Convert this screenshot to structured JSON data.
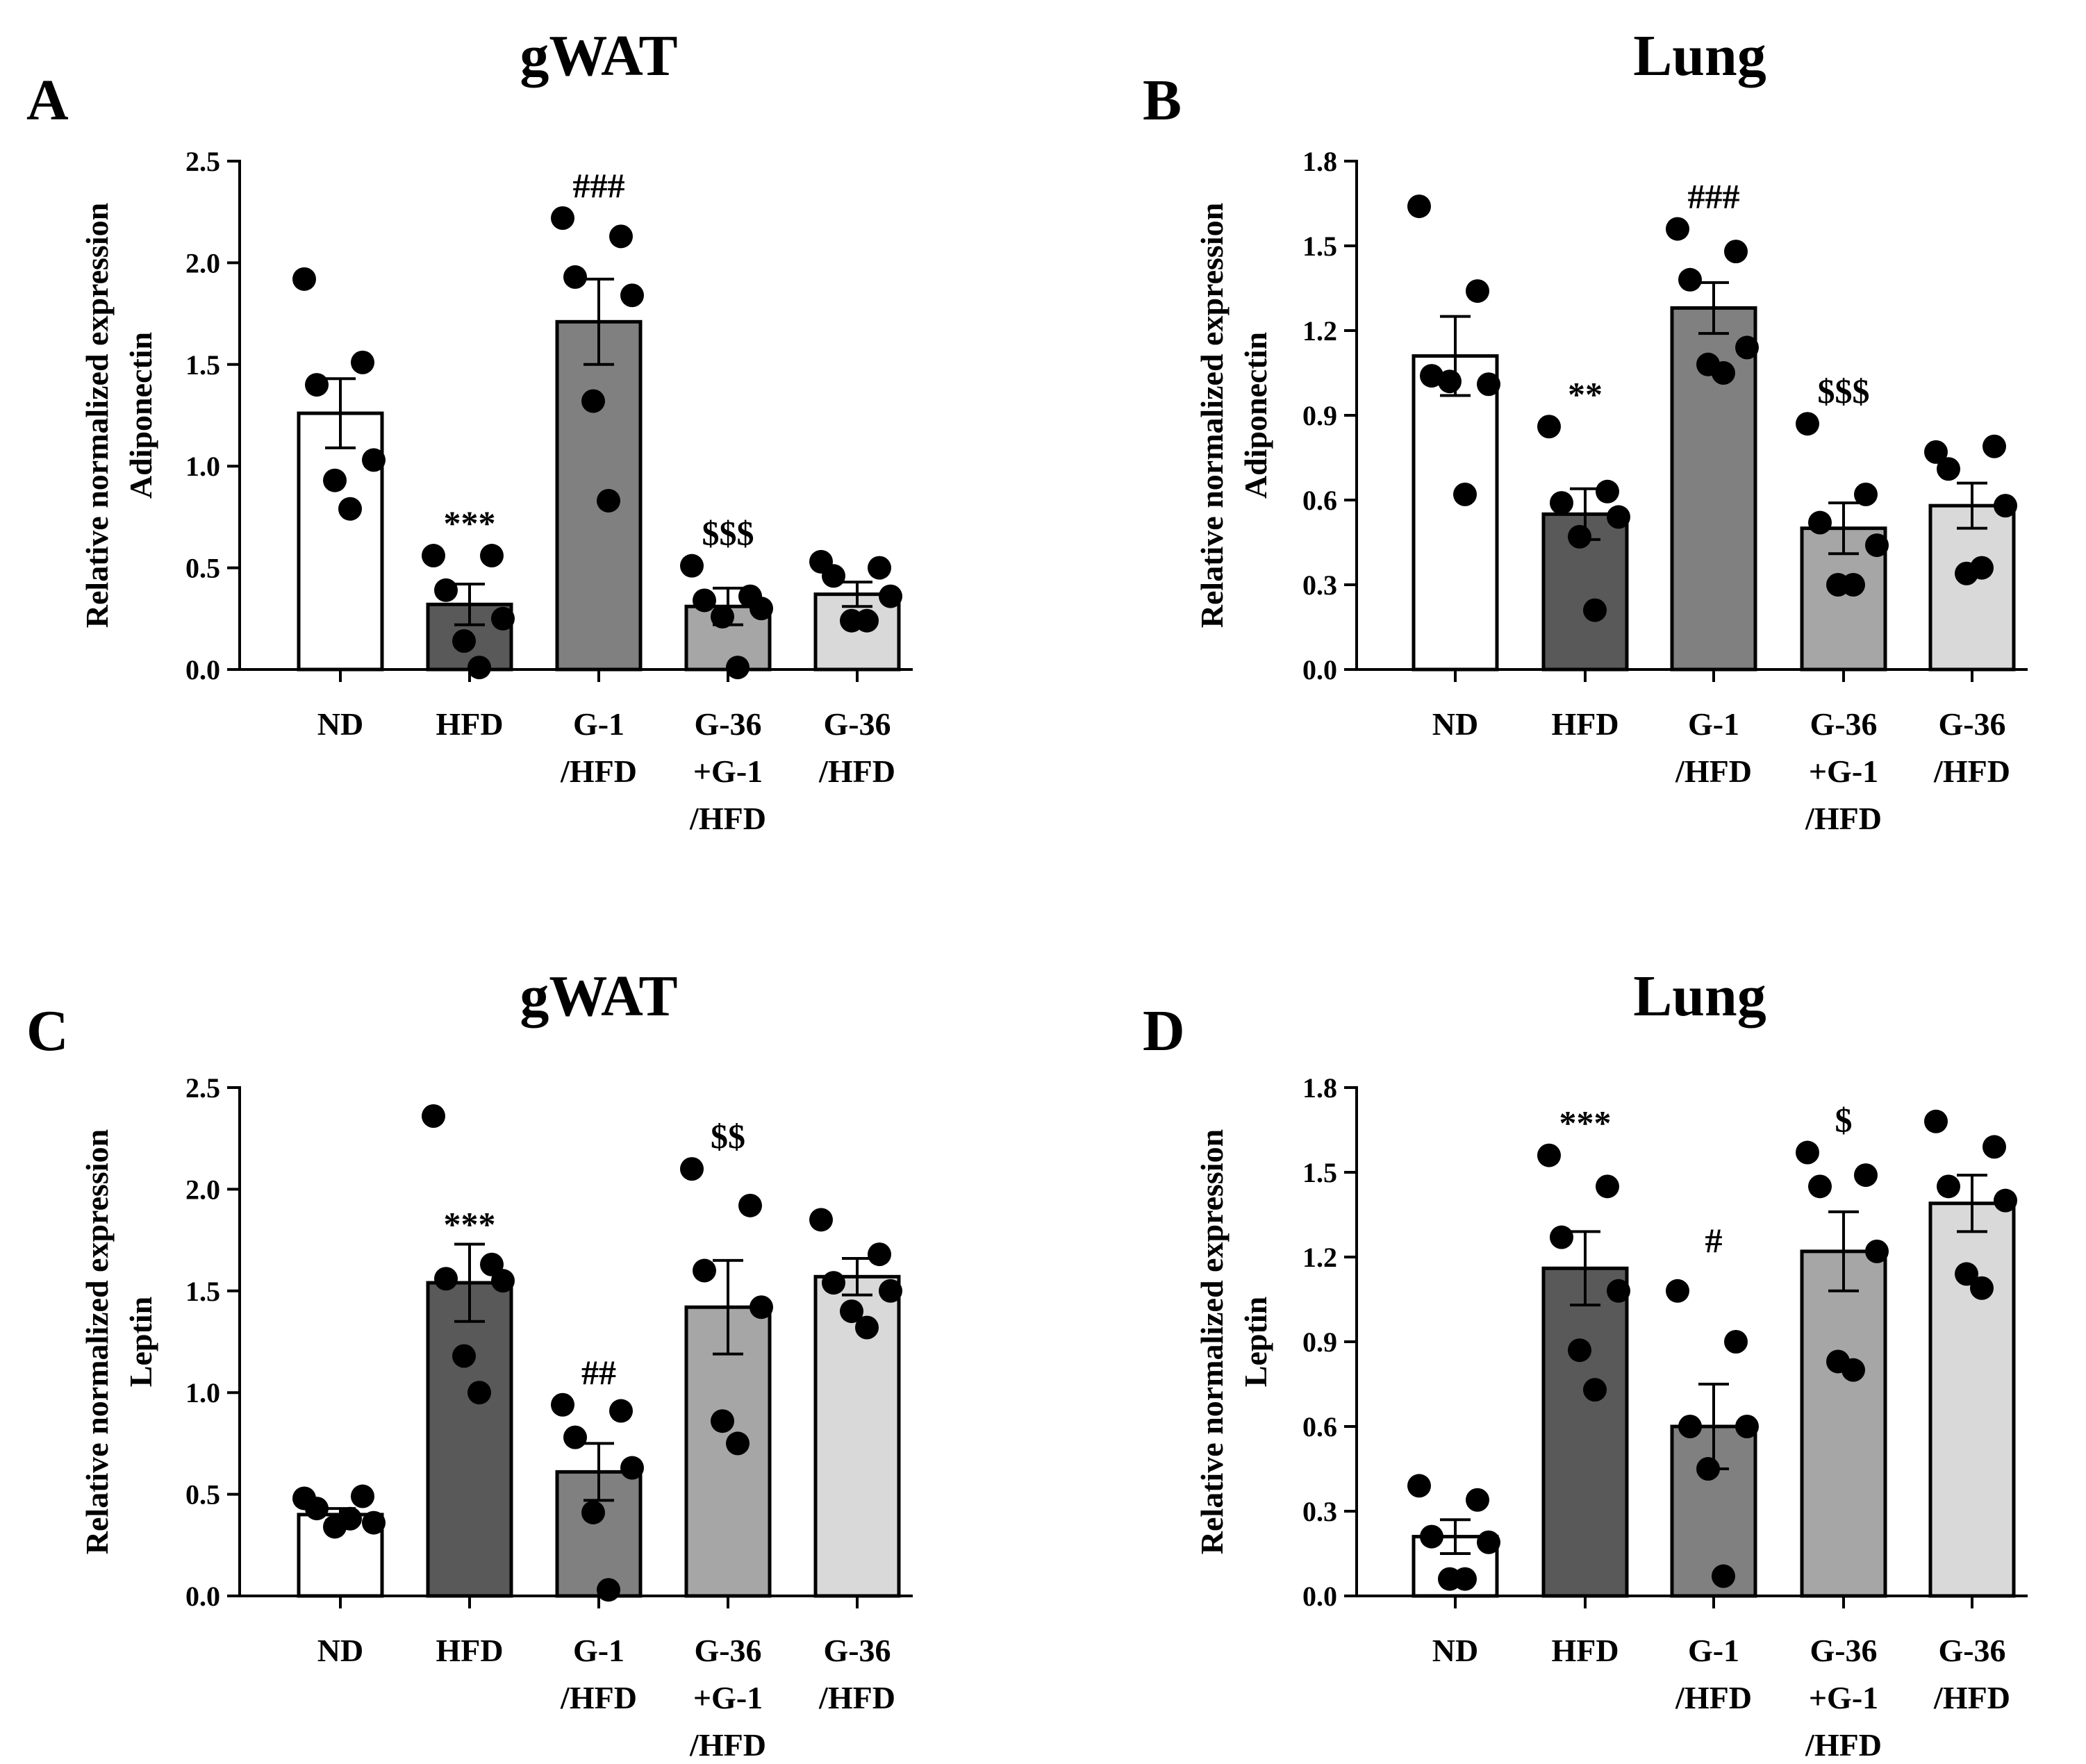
{
  "categories": [
    [
      "ND"
    ],
    [
      "HFD"
    ],
    [
      "G-1",
      "/HFD"
    ],
    [
      "G-36",
      "+G-1",
      "/HFD"
    ],
    [
      "G-36",
      "/HFD"
    ]
  ],
  "bar_colors": [
    "#ffffff",
    "#595959",
    "#808080",
    "#a6a6a6",
    "#d9d9d9"
  ],
  "chart_data": [
    {
      "type": "bar",
      "panel": "A",
      "title": "gWAT",
      "ylabel": [
        "Relative normalized expression",
        "Adiponectin"
      ],
      "ylim": [
        0,
        2.5
      ],
      "yticks": [
        "0.0",
        "0.5",
        "1.0",
        "1.5",
        "2.0",
        "2.5"
      ],
      "values": [
        1.26,
        0.32,
        1.71,
        0.31,
        0.37
      ],
      "errors": [
        0.17,
        0.1,
        0.21,
        0.09,
        0.06
      ],
      "points": [
        [
          1.92,
          1.51,
          1.4,
          1.03,
          0.93,
          0.79
        ],
        [
          0.56,
          0.56,
          0.39,
          0.25,
          0.14,
          0.01
        ],
        [
          2.22,
          2.13,
          1.93,
          1.84,
          1.32,
          0.83
        ],
        [
          0.51,
          0.36,
          0.34,
          0.3,
          0.26,
          0.01
        ],
        [
          0.53,
          0.5,
          0.46,
          0.36,
          0.24,
          0.24
        ]
      ],
      "annotations": [
        "",
        "***",
        "###",
        "$$$",
        ""
      ]
    },
    {
      "type": "bar",
      "panel": "B",
      "title": "Lung",
      "ylabel": [
        "Relative normalized expression",
        "Adiponectin"
      ],
      "ylim": [
        0,
        1.8
      ],
      "yticks": [
        "0.0",
        "0.3",
        "0.6",
        "0.9",
        "1.2",
        "1.5",
        "1.8"
      ],
      "values": [
        1.11,
        0.55,
        1.28,
        0.5,
        0.58
      ],
      "errors": [
        0.14,
        0.09,
        0.09,
        0.09,
        0.08
      ],
      "points": [
        [
          1.64,
          1.34,
          1.04,
          1.01,
          1.02,
          0.62
        ],
        [
          0.86,
          0.63,
          0.59,
          0.54,
          0.47,
          0.21
        ],
        [
          1.56,
          1.48,
          1.38,
          1.14,
          1.08,
          1.05
        ],
        [
          0.87,
          0.62,
          0.52,
          0.44,
          0.3,
          0.3
        ],
        [
          0.77,
          0.79,
          0.71,
          0.58,
          0.34,
          0.36
        ]
      ],
      "annotations": [
        "",
        "**",
        "###",
        "$$$",
        ""
      ]
    },
    {
      "type": "bar",
      "panel": "C",
      "title": "gWAT",
      "ylabel": [
        "Relative normalized expression",
        "Leptin"
      ],
      "ylim": [
        0,
        2.5
      ],
      "yticks": [
        "0.0",
        "0.5",
        "1.0",
        "1.5",
        "2.0",
        "2.5"
      ],
      "values": [
        0.4,
        1.54,
        0.61,
        1.42,
        1.57
      ],
      "errors": [
        0.03,
        0.19,
        0.14,
        0.23,
        0.09
      ],
      "points": [
        [
          0.48,
          0.49,
          0.43,
          0.36,
          0.34,
          0.38
        ],
        [
          2.36,
          1.63,
          1.56,
          1.55,
          1.18,
          1.0
        ],
        [
          0.94,
          0.91,
          0.78,
          0.63,
          0.41,
          0.03
        ],
        [
          2.1,
          1.92,
          1.6,
          1.42,
          0.86,
          0.75
        ],
        [
          1.85,
          1.68,
          1.54,
          1.5,
          1.4,
          1.32
        ]
      ],
      "annotations": [
        "",
        "***",
        "##",
        "$$",
        ""
      ]
    },
    {
      "type": "bar",
      "panel": "D",
      "title": "Lung",
      "ylabel": [
        "Relative normalized expression",
        "Leptin"
      ],
      "ylim": [
        0,
        1.8
      ],
      "yticks": [
        "0.0",
        "0.3",
        "0.6",
        "0.9",
        "1.2",
        "1.5",
        "1.8"
      ],
      "values": [
        0.21,
        1.16,
        0.6,
        1.22,
        1.39
      ],
      "errors": [
        0.06,
        0.13,
        0.15,
        0.14,
        0.1
      ],
      "points": [
        [
          0.39,
          0.34,
          0.21,
          0.19,
          0.06,
          0.06
        ],
        [
          1.56,
          1.45,
          1.27,
          1.08,
          0.87,
          0.73
        ],
        [
          1.08,
          0.9,
          0.6,
          0.6,
          0.45,
          0.07
        ],
        [
          1.57,
          1.49,
          1.45,
          1.22,
          0.83,
          0.8
        ],
        [
          1.68,
          1.59,
          1.45,
          1.4,
          1.14,
          1.09
        ]
      ],
      "annotations": [
        "",
        "***",
        "#",
        "$",
        ""
      ]
    }
  ]
}
